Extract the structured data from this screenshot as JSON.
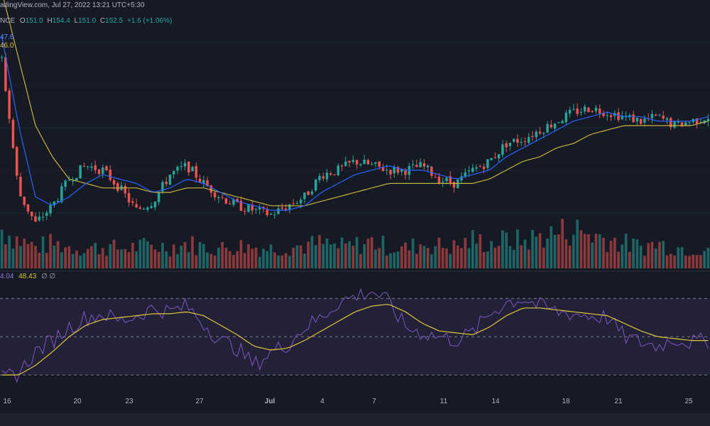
{
  "header": {
    "source_line": "adingView.com, Jul 27, 2022 13:21 UTC+5:30",
    "symbol_fragment": "NCE",
    "ohlc": [
      {
        "label": "O",
        "value": "151.0"
      },
      {
        "label": "H",
        "value": "154.4"
      },
      {
        "label": "L",
        "value": "151.0"
      },
      {
        "label": "C",
        "value": "152.5"
      }
    ],
    "change": "+1.6 (+1.06%)",
    "ma_fast_value": "47.6",
    "ma_slow_value": "46.0",
    "rsi_value": "4.04",
    "rsi_ma_value": "48.43",
    "rsi_extra": "∅ ∅"
  },
  "colors": {
    "background": "#161a25",
    "up": "#26a69a",
    "down": "#ef5350",
    "ma_fast": "#2962ff",
    "ma_slow": "#c9b23a",
    "rsi": "#7e57c2",
    "rsi_ma": "#e0c53a"
  },
  "chart_data": {
    "type": "candlestick",
    "x_ticks": [
      {
        "label": "16",
        "index": 0
      },
      {
        "label": "20",
        "index": 4
      },
      {
        "label": "23",
        "index": 7
      },
      {
        "label": "27",
        "index": 11
      },
      {
        "label": "Jul",
        "index": 15
      },
      {
        "label": "4",
        "index": 18
      },
      {
        "label": "7",
        "index": 21
      },
      {
        "label": "11",
        "index": 25
      },
      {
        "label": "14",
        "index": 28
      },
      {
        "label": "18",
        "index": 32
      },
      {
        "label": "21",
        "index": 35
      },
      {
        "label": "25",
        "index": 39
      }
    ],
    "price_anchors": [
      165,
      135,
      128,
      132,
      138,
      141,
      140,
      136,
      131,
      133,
      139,
      141,
      137,
      134,
      132,
      131,
      130,
      132,
      134,
      139,
      140,
      142,
      141,
      140,
      140,
      141,
      138,
      137,
      140,
      142,
      146,
      147,
      149,
      151,
      153,
      154,
      153,
      152,
      151,
      152,
      150,
      151,
      152
    ],
    "ma_fast_anchors": [
      170,
      150,
      134,
      132,
      134,
      137,
      139,
      138,
      137,
      135,
      136,
      138,
      137,
      135,
      133,
      132,
      131,
      131,
      132,
      135,
      137,
      139,
      140,
      141,
      140,
      140,
      139,
      138,
      139,
      140,
      143,
      145,
      147,
      149,
      151,
      152,
      153,
      152,
      152,
      151,
      151,
      151,
      152
    ],
    "ma_slow_anchors": [
      180,
      165,
      150,
      143,
      138,
      137,
      136,
      136,
      136,
      135,
      135,
      136,
      136,
      135,
      134,
      133,
      132,
      132,
      132,
      133,
      134,
      135,
      136,
      137,
      137,
      137,
      137,
      137,
      137,
      138,
      140,
      142,
      143,
      145,
      146,
      148,
      149,
      150,
      150,
      150,
      150,
      150,
      151
    ],
    "rsi_anchors": [
      28,
      31,
      42,
      48,
      55,
      60,
      62,
      58,
      61,
      65,
      63,
      66,
      57,
      48,
      44,
      35,
      42,
      46,
      55,
      60,
      68,
      71,
      74,
      68,
      55,
      52,
      50,
      48,
      52,
      62,
      68,
      70,
      66,
      63,
      62,
      61,
      60,
      50,
      47,
      45,
      49,
      47,
      48
    ],
    "rsi_ma_anchors": [
      30,
      30,
      35,
      42,
      50,
      56,
      59,
      60,
      61,
      62,
      62,
      63,
      61,
      56,
      51,
      45,
      43,
      44,
      48,
      53,
      58,
      63,
      66,
      67,
      63,
      57,
      53,
      52,
      51,
      55,
      61,
      65,
      65,
      64,
      63,
      62,
      61,
      57,
      53,
      50,
      49,
      48,
      48
    ],
    "rsi_levels": [
      70,
      50,
      30
    ],
    "volume_anchors": [
      55,
      40,
      30,
      35,
      30,
      28,
      30,
      28,
      30,
      32,
      30,
      35,
      30,
      28,
      32,
      30,
      28,
      30,
      32,
      35,
      30,
      32,
      38,
      30,
      28,
      35,
      32,
      30,
      40,
      35,
      40,
      38,
      45,
      50,
      55,
      48,
      42,
      35,
      30,
      35,
      30,
      28,
      30
    ],
    "ylim_price": [
      124,
      175
    ],
    "ylim_rsi": [
      20,
      82
    ],
    "grid": true,
    "legend": "top-left"
  }
}
